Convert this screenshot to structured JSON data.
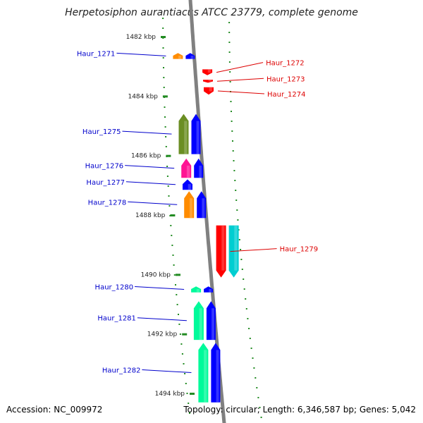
{
  "title": "Herpetosiphon aurantiacus ATCC 23779, complete genome",
  "accession_text": "Accession: NC_009972",
  "summary_text": "Topology: circular; Length: 6,346,587 bp; Genes: 5,042",
  "chart_data": {
    "type": "genome-map",
    "kbp_ticks": [
      {
        "kbp": 1482,
        "label": "1482 kbp"
      },
      {
        "kbp": 1484,
        "label": "1484 kbp"
      },
      {
        "kbp": 1486,
        "label": "1486 kbp"
      },
      {
        "kbp": 1488,
        "label": "1488 kbp"
      },
      {
        "kbp": 1490,
        "label": "1490 kbp"
      },
      {
        "kbp": 1492,
        "label": "1492 kbp"
      },
      {
        "kbp": 1494,
        "label": "1494 kbp"
      }
    ],
    "genes": [
      {
        "name": "Haur_1271",
        "strand": "-",
        "start_kbp": 1482.55,
        "end_kbp": 1482.75,
        "color": "#ff8c00"
      },
      {
        "name": "Haur_1272",
        "strand": "+",
        "start_kbp": 1483.1,
        "end_kbp": 1483.3,
        "color": "#ff0000"
      },
      {
        "name": "Haur_1273",
        "strand": "+",
        "start_kbp": 1483.45,
        "end_kbp": 1483.55,
        "color": "#ff0000"
      },
      {
        "name": "Haur_1274",
        "strand": "+",
        "start_kbp": 1483.7,
        "end_kbp": 1483.95,
        "color": "#ff0000"
      },
      {
        "name": "Haur_1275",
        "strand": "-",
        "start_kbp": 1484.6,
        "end_kbp": 1485.95,
        "color": "#6b8e23"
      },
      {
        "name": "Haur_1276",
        "strand": "-",
        "start_kbp": 1486.1,
        "end_kbp": 1486.75,
        "color": "#ff1493"
      },
      {
        "name": "Haur_1277",
        "strand": "-",
        "start_kbp": 1486.8,
        "end_kbp": 1487.15,
        "color": "#0000ff"
      },
      {
        "name": "Haur_1278",
        "strand": "-",
        "start_kbp": 1487.2,
        "end_kbp": 1488.1,
        "color": "#ff8c00"
      },
      {
        "name": "Haur_1279",
        "strand": "+",
        "start_kbp": 1488.35,
        "end_kbp": 1490.1,
        "color": "#ff0000"
      },
      {
        "name": "Haur_1280",
        "strand": "-",
        "start_kbp": 1490.4,
        "end_kbp": 1490.6,
        "color": "#00fa9a"
      },
      {
        "name": "Haur_1281",
        "strand": "-",
        "start_kbp": 1490.9,
        "end_kbp": 1492.2,
        "color": "#00fa9a"
      },
      {
        "name": "Haur_1282",
        "strand": "-",
        "start_kbp": 1492.3,
        "end_kbp": 1494.3,
        "color": "#00fa9a"
      }
    ]
  }
}
